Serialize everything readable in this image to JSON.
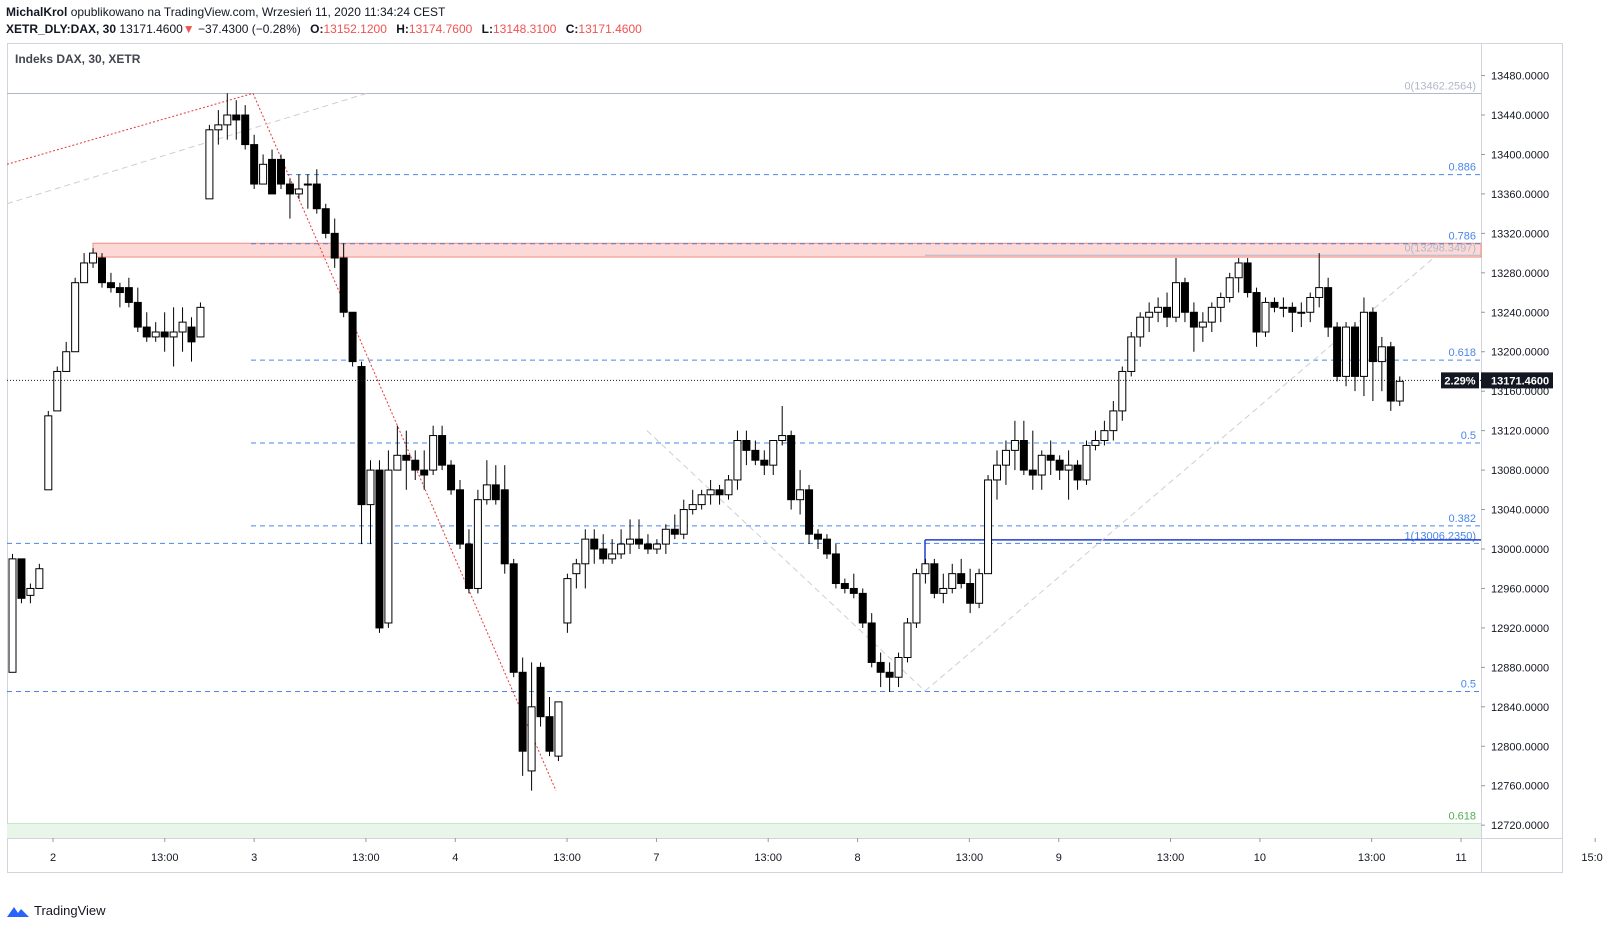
{
  "header": {
    "author": "MichalKrol",
    "published": "opublikowano na TradingView.com, Wrzesień 11, 2020 11:34:24 CEST",
    "symbol": "XETR_DLY:DAX, 30",
    "last": "13171.4600",
    "change": "−37.4300 (−0.28%)",
    "o_label": "O:",
    "o_value": "13152.1200",
    "h_label": "H:",
    "h_value": "13174.7600",
    "l_label": "L:",
    "l_value": "13148.3100",
    "c_label": "C:",
    "c_value": "13171.4600"
  },
  "chart_title": "Indeks DAX, 30, XETR",
  "footer": {
    "brand": "TradingView"
  },
  "colors": {
    "down": "#000000",
    "up": "#ffffff",
    "fib": "#4a86e8",
    "zone": "#f28b82",
    "green_line": "#4caf50",
    "blue_level": "#1f3fd1",
    "red_dotted": "#e53935"
  },
  "chart_data": {
    "type": "candlestick",
    "y_ticks": [
      13480,
      13440,
      13400,
      13360,
      13320,
      13280,
      13240,
      13200,
      13160,
      13120,
      13080,
      13040,
      13000,
      12960,
      12920,
      12880,
      12840,
      12800,
      12760,
      12720
    ],
    "y_tick_labels": [
      "13480.0000",
      "13440.0000",
      "13400.0000",
      "13360.0000",
      "13320.0000",
      "13280.0000",
      "13240.0000",
      "13200.0000",
      "13160.0000",
      "13120.0000",
      "13080.0000",
      "13040.0000",
      "13000.0000",
      "12960.0000",
      "12920.0000",
      "12880.0000",
      "12840.0000",
      "12800.0000",
      "12760.0000",
      "12720.0000"
    ],
    "ylim": [
      12707,
      13513
    ],
    "x_tick_labels": [
      {
        "label": "2",
        "bar": 2
      },
      {
        "label": "13:00",
        "bar": 7
      },
      {
        "label": "3",
        "bar": 11
      },
      {
        "label": "13:00",
        "bar": 16
      },
      {
        "label": "4",
        "bar": 20
      },
      {
        "label": "13:00",
        "bar": 25
      },
      {
        "label": "7",
        "bar": 29
      },
      {
        "label": "13:00",
        "bar": 34
      },
      {
        "label": "8",
        "bar": 38
      },
      {
        "label": "13:00",
        "bar": 43
      },
      {
        "label": "9",
        "bar": 47
      },
      {
        "label": "13:00",
        "bar": 52
      },
      {
        "label": "10",
        "bar": 56
      },
      {
        "label": "13:00",
        "bar": 61
      },
      {
        "label": "11",
        "bar": 65
      },
      {
        "label": "15:00",
        "bar": 71
      }
    ],
    "last_price": {
      "value": 13171.46,
      "label": "13171.4600",
      "percent": "2.29%"
    },
    "fib_levels": [
      {
        "label": "0(13462.2564)",
        "value": 13462.3,
        "color": "#b0b8c8"
      },
      {
        "label": "0.886",
        "value": 13380,
        "color": "#4a86e8"
      },
      {
        "label": "0.786",
        "value": 13310,
        "color": "#4a86e8"
      },
      {
        "label": "0(13298.3497)",
        "value": 13298.3,
        "color": "#b0b8c8"
      },
      {
        "label": "0.618",
        "value": 13192,
        "color": "#4a86e8"
      },
      {
        "label": "0.5",
        "value": 13108,
        "color": "#4a86e8"
      },
      {
        "label": "0.382",
        "value": 13024,
        "color": "#4a86e8"
      },
      {
        "label": "1(13006.2350)",
        "value": 13006.2,
        "color": "#4a86e8"
      },
      {
        "label": "0.5",
        "value": 12856,
        "color": "#4a86e8"
      },
      {
        "label": "0.618",
        "value": 12722,
        "color": "#4caf50"
      }
    ],
    "resistance_zone": {
      "from": 13296,
      "to": 13310
    },
    "candles": [
      [
        12875,
        12995,
        12875,
        12990
      ],
      [
        12990,
        12990,
        12945,
        12950
      ],
      [
        12953,
        12965,
        12945,
        12960
      ],
      [
        12960,
        12985,
        12960,
        12980
      ],
      [
        13060,
        13140,
        13060,
        13135
      ],
      [
        13140,
        13185,
        13140,
        13180
      ],
      [
        13180,
        13210,
        13180,
        13200
      ],
      [
        13200,
        13275,
        13200,
        13270
      ],
      [
        13270,
        13300,
        13270,
        13290
      ],
      [
        13290,
        13305,
        13285,
        13300
      ],
      [
        13295,
        13300,
        13265,
        13270
      ],
      [
        13270,
        13280,
        13260,
        13265
      ],
      [
        13265,
        13270,
        13245,
        13260
      ],
      [
        13265,
        13275,
        13245,
        13250
      ],
      [
        13250,
        13265,
        13220,
        13225
      ],
      [
        13225,
        13240,
        13210,
        13215
      ],
      [
        13215,
        13230,
        13210,
        13220
      ],
      [
        13220,
        13240,
        13200,
        13215
      ],
      [
        13215,
        13245,
        13185,
        13220
      ],
      [
        13220,
        13245,
        13200,
        13230
      ],
      [
        13225,
        13235,
        13190,
        13210
      ],
      [
        13215,
        13250,
        13215,
        13245
      ],
      [
        13355,
        13430,
        13355,
        13425
      ],
      [
        13425,
        13445,
        13410,
        13430
      ],
      [
        13430,
        13462,
        13415,
        13440
      ],
      [
        13440,
        13455,
        13415,
        13435
      ],
      [
        13440,
        13450,
        13405,
        13410
      ],
      [
        13410,
        13420,
        13365,
        13370
      ],
      [
        13370,
        13400,
        13370,
        13390
      ],
      [
        13395,
        13405,
        13360,
        13360
      ],
      [
        13395,
        13400,
        13365,
        13370
      ],
      [
        13370,
        13375,
        13335,
        13360
      ],
      [
        13360,
        13380,
        13355,
        13365
      ],
      [
        13370,
        13380,
        13345,
        13370
      ],
      [
        13370,
        13385,
        13340,
        13345
      ],
      [
        13345,
        13350,
        13315,
        13320
      ],
      [
        13320,
        13335,
        13285,
        13295
      ],
      [
        13295,
        13310,
        13235,
        13240
      ],
      [
        13240,
        13240,
        13185,
        13190
      ],
      [
        13185,
        13190,
        13005,
        13045
      ],
      [
        13045,
        13090,
        13005,
        13080
      ],
      [
        13080,
        13090,
        12915,
        12920
      ],
      [
        12925,
        13100,
        12920,
        13080
      ],
      [
        13080,
        13125,
        13080,
        13095
      ],
      [
        13095,
        13120,
        13060,
        13090
      ],
      [
        13090,
        13100,
        13070,
        13080
      ],
      [
        13080,
        13100,
        13060,
        13075
      ],
      [
        13080,
        13125,
        13075,
        13115
      ],
      [
        13115,
        13125,
        13080,
        13085
      ],
      [
        13085,
        13090,
        13055,
        13060
      ],
      [
        13060,
        13070,
        13000,
        13005
      ],
      [
        13005,
        13020,
        12955,
        12960
      ],
      [
        12960,
        13060,
        12955,
        13050
      ],
      [
        13050,
        13090,
        13045,
        13065
      ],
      [
        13065,
        13085,
        13045,
        13050
      ],
      [
        13060,
        13085,
        12975,
        12985
      ],
      [
        12985,
        12990,
        12870,
        12875
      ],
      [
        12875,
        12890,
        12770,
        12795
      ],
      [
        12775,
        12885,
        12755,
        12840
      ],
      [
        12880,
        12885,
        12820,
        12830
      ],
      [
        12830,
        12850,
        12790,
        12795
      ],
      [
        12790,
        12845,
        12785,
        12845
      ],
      [
        12925,
        12975,
        12915,
        12970
      ],
      [
        12975,
        12990,
        12960,
        12985
      ],
      [
        12985,
        13020,
        12960,
        13010
      ],
      [
        13010,
        13020,
        12985,
        13000
      ],
      [
        13000,
        13015,
        12985,
        12990
      ],
      [
        12990,
        13010,
        12985,
        12995
      ],
      [
        12995,
        13020,
        12990,
        13005
      ],
      [
        13005,
        13030,
        12995,
        13010
      ],
      [
        13010,
        13030,
        13000,
        13005
      ],
      [
        13005,
        13015,
        12995,
        13000
      ],
      [
        13000,
        13010,
        12995,
        13005
      ],
      [
        13005,
        13025,
        12995,
        13020
      ],
      [
        13020,
        13035,
        13010,
        13015
      ],
      [
        13015,
        13050,
        13010,
        13040
      ],
      [
        13040,
        13060,
        13035,
        13045
      ],
      [
        13045,
        13060,
        13040,
        13055
      ],
      [
        13055,
        13070,
        13045,
        13060
      ],
      [
        13060,
        13065,
        13045,
        13055
      ],
      [
        13055,
        13075,
        13050,
        13070
      ],
      [
        13070,
        13120,
        13060,
        13110
      ],
      [
        13110,
        13120,
        13085,
        13100
      ],
      [
        13100,
        13110,
        13085,
        13090
      ],
      [
        13090,
        13100,
        13075,
        13085
      ],
      [
        13085,
        13110,
        13075,
        13110
      ],
      [
        13110,
        13145,
        13105,
        13115
      ],
      [
        13115,
        13120,
        13040,
        13050
      ],
      [
        13050,
        13080,
        13035,
        13060
      ],
      [
        13060,
        13065,
        13005,
        13015
      ],
      [
        13015,
        13020,
        13000,
        13010
      ],
      [
        13010,
        13015,
        12990,
        12995
      ],
      [
        12995,
        13005,
        12960,
        12965
      ],
      [
        12965,
        12970,
        12955,
        12960
      ],
      [
        12960,
        12975,
        12950,
        12955
      ],
      [
        12955,
        12960,
        12920,
        12925
      ],
      [
        12925,
        12935,
        12880,
        12885
      ],
      [
        12885,
        12895,
        12860,
        12875
      ],
      [
        12875,
        12885,
        12855,
        12870
      ],
      [
        12870,
        12895,
        12860,
        12890
      ],
      [
        12890,
        12930,
        12885,
        12925
      ],
      [
        12925,
        12980,
        12920,
        12975
      ],
      [
        12975,
        12990,
        12965,
        12985
      ],
      [
        12985,
        12990,
        12950,
        12955
      ],
      [
        12955,
        12975,
        12945,
        12960
      ],
      [
        12960,
        12985,
        12955,
        12975
      ],
      [
        12975,
        12990,
        12960,
        12965
      ],
      [
        12965,
        12980,
        12935,
        12945
      ],
      [
        12945,
        12980,
        12940,
        12975
      ],
      [
        12975,
        13075,
        12975,
        13070
      ],
      [
        13070,
        13100,
        13050,
        13085
      ],
      [
        13085,
        13110,
        13065,
        13100
      ],
      [
        13100,
        13130,
        13080,
        13110
      ],
      [
        13110,
        13130,
        13075,
        13080
      ],
      [
        13080,
        13120,
        13060,
        13075
      ],
      [
        13075,
        13100,
        13060,
        13095
      ],
      [
        13095,
        13110,
        13075,
        13090
      ],
      [
        13090,
        13095,
        13070,
        13080
      ],
      [
        13080,
        13100,
        13050,
        13085
      ],
      [
        13085,
        13090,
        13060,
        13070
      ],
      [
        13070,
        13110,
        13065,
        13105
      ],
      [
        13105,
        13120,
        13100,
        13110
      ],
      [
        13110,
        13130,
        13105,
        13120
      ],
      [
        13120,
        13150,
        13110,
        13140
      ],
      [
        13140,
        13185,
        13130,
        13180
      ],
      [
        13180,
        13220,
        13175,
        13215
      ],
      [
        13215,
        13240,
        13205,
        13235
      ],
      [
        13235,
        13250,
        13220,
        13240
      ],
      [
        13240,
        13255,
        13230,
        13245
      ],
      [
        13245,
        13260,
        13225,
        13235
      ],
      [
        13235,
        13295,
        13230,
        13270
      ],
      [
        13270,
        13275,
        13230,
        13240
      ],
      [
        13240,
        13250,
        13200,
        13225
      ],
      [
        13225,
        13240,
        13210,
        13230
      ],
      [
        13230,
        13250,
        13220,
        13245
      ],
      [
        13245,
        13260,
        13230,
        13255
      ],
      [
        13255,
        13280,
        13250,
        13275
      ],
      [
        13275,
        13295,
        13260,
        13290
      ],
      [
        13290,
        13295,
        13255,
        13260
      ],
      [
        13260,
        13265,
        13205,
        13220
      ],
      [
        13220,
        13255,
        13215,
        13250
      ],
      [
        13250,
        13255,
        13240,
        13245
      ],
      [
        13245,
        13255,
        13235,
        13245
      ],
      [
        13245,
        13250,
        13220,
        13240
      ],
      [
        13240,
        13250,
        13225,
        13240
      ],
      [
        13240,
        13260,
        13230,
        13255
      ],
      [
        13255,
        13300,
        13245,
        13265
      ],
      [
        13265,
        13275,
        13215,
        13225
      ],
      [
        13225,
        13230,
        13170,
        13175
      ],
      [
        13175,
        13230,
        13165,
        13225
      ],
      [
        13225,
        13230,
        13160,
        13175
      ],
      [
        13175,
        13255,
        13155,
        13240
      ],
      [
        13240,
        13245,
        13150,
        13190
      ],
      [
        13190,
        13215,
        13160,
        13205
      ],
      [
        13205,
        13210,
        13140,
        13150
      ],
      [
        13150,
        13175,
        13145,
        13170
      ]
    ]
  }
}
